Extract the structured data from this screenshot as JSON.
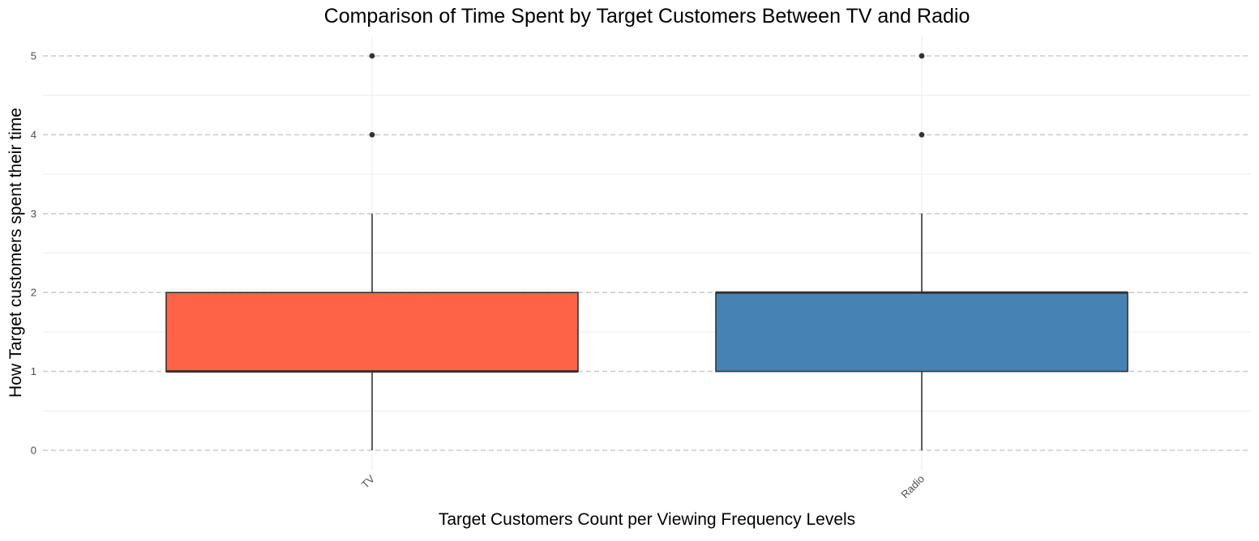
{
  "chart_data": {
    "type": "boxplot",
    "title": "Comparison of Time Spent by Target Customers Between TV and Radio",
    "xlabel": "Target Customers Count per Viewing Frequency Levels",
    "ylabel": "How Target customers spent their time",
    "ylim": [
      0,
      5
    ],
    "yticks": [
      "0",
      "1",
      "2",
      "3",
      "4",
      "5"
    ],
    "grid": true,
    "legend": "none",
    "categories": [
      "TV",
      "Radio"
    ],
    "boxes": [
      {
        "category": "TV",
        "whisker_low": 0,
        "q1": 1,
        "median": 1,
        "q3": 2,
        "whisker_high": 3,
        "outliers": [
          4,
          5
        ],
        "color": "#FF6347"
      },
      {
        "category": "Radio",
        "whisker_low": 0,
        "q1": 1,
        "median": 2,
        "q3": 2,
        "whisker_high": 3,
        "outliers": [
          4,
          5
        ],
        "color": "#4682B4"
      }
    ]
  }
}
